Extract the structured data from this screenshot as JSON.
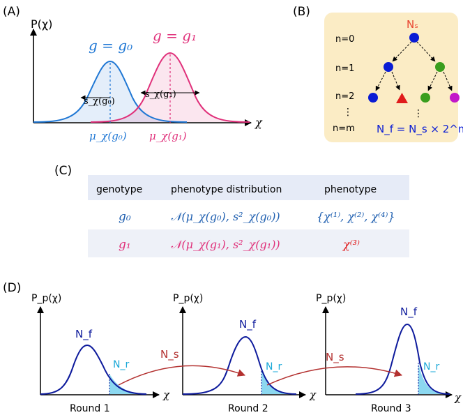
{
  "panels": {
    "a": {
      "label": "(A)",
      "y_axis_label": "P(χ)",
      "x_axis_label": "χ",
      "curve_labels": [
        "g = g₀",
        "g = g₁"
      ],
      "width_labels": [
        "s_χ(g₀)",
        "s_χ(g₁)"
      ],
      "mean_labels": [
        "μ_χ(g₀)",
        "μ_χ(g₁)"
      ],
      "colors": {
        "g0": "#1f77d4",
        "g1": "#e0307a"
      }
    },
    "b": {
      "label": "(B)",
      "root_label": "Nₛ",
      "level_labels": [
        "n=0",
        "n=1",
        "n=2",
        "⋮",
        "n=m"
      ],
      "formula": "N_f = N_s × 2^m",
      "background": "#fbecc5"
    },
    "c": {
      "label": "(C)",
      "headers": [
        "genotype",
        "phenotype distribution",
        "phenotype"
      ],
      "rows": [
        {
          "genotype": "g₀",
          "distribution": "𝒩(μ_χ(g₀), s²_χ(g₀))",
          "phenotype": "{χ⁽¹⁾, χ⁽²⁾, χ⁽⁴⁾}"
        },
        {
          "genotype": "g₁",
          "distribution": "𝒩(μ_χ(g₁), s²_χ(g₁))",
          "phenotype": "χ⁽³⁾"
        }
      ]
    },
    "d": {
      "label": "(D)",
      "y_axis_label": "P_p(χ)",
      "x_axis_label": "χ",
      "peak_label": "N_f",
      "tail_label": "N_r",
      "arrow_label": "N_s",
      "rounds": [
        "Round 1",
        "Round 2",
        "Round 3"
      ]
    }
  }
}
